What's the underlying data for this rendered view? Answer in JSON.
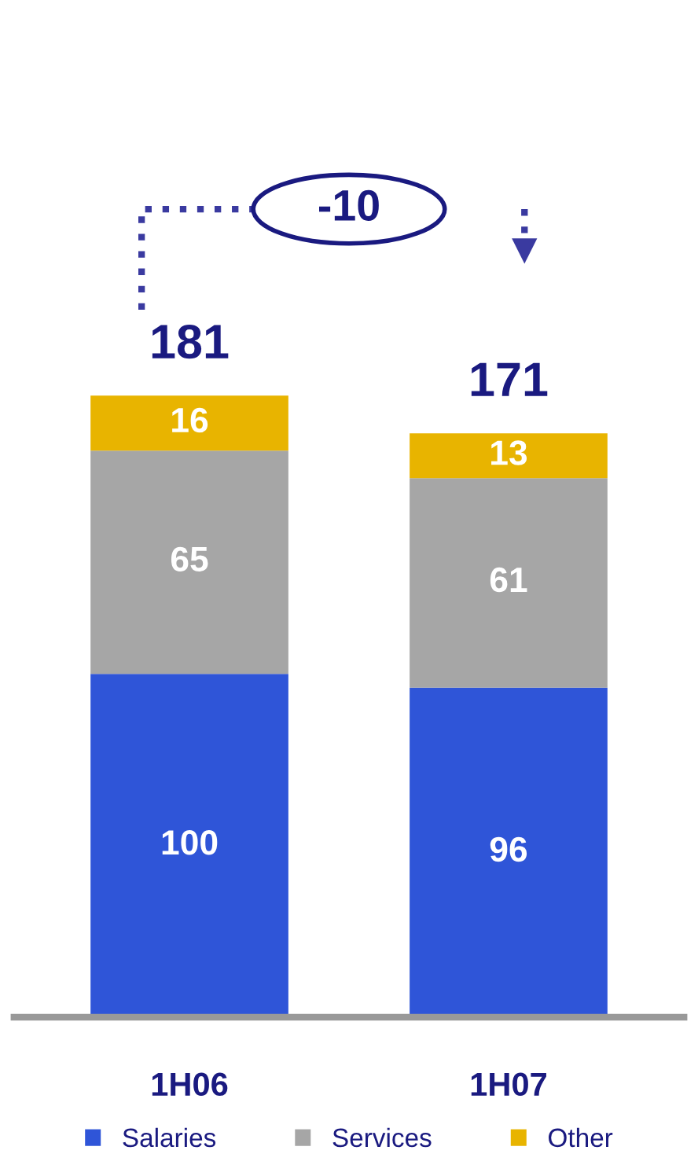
{
  "chart_data": {
    "type": "bar",
    "stacked": true,
    "data_labels": true,
    "legend": "bottom",
    "grid": false,
    "categories": [
      "1H06",
      "1H07"
    ],
    "series": [
      {
        "name": "Salaries",
        "color": "#2f55d8",
        "values": [
          100,
          96
        ]
      },
      {
        "name": "Services",
        "color": "#a6a6a6",
        "values": [
          65,
          61
        ]
      },
      {
        "name": "Other",
        "color": "#e8b400",
        "values": [
          16,
          13
        ]
      }
    ],
    "totals": [
      "181",
      "171"
    ],
    "annotations": [
      "-10"
    ]
  }
}
